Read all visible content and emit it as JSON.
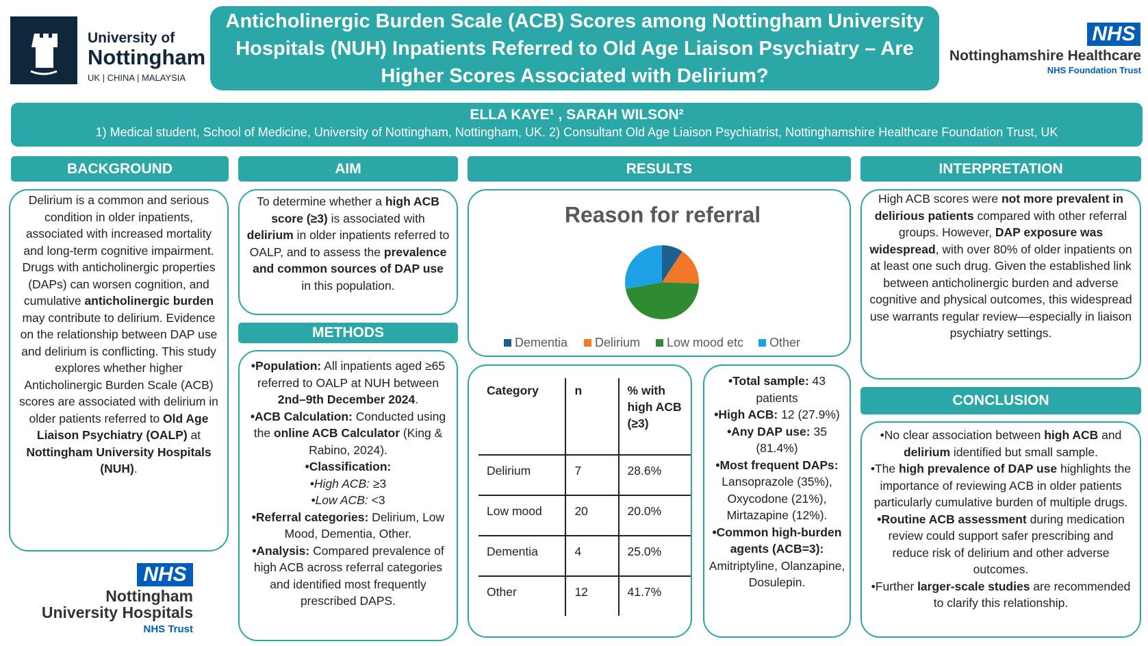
{
  "header": {
    "university": {
      "line1": "University of",
      "line2": "Nottingham",
      "sub": "UK | CHINA | MALAYSIA"
    },
    "title": "Anticholinergic Burden Scale (ACB) Scores among Nottingham University Hospitals (NUH) Inpatients Referred to Old Age Liaison Psychiatry – Are Higher Scores Associated with Delirium?",
    "nhs_right": {
      "badge": "NHS",
      "name": "Nottinghamshire Healthcare",
      "sub": "NHS Foundation Trust"
    }
  },
  "authors": {
    "names": "ELLA KAYE¹ , SARAH WILSON²",
    "affiliations": "1) Medical student,  School of Medicine, University of Nottingham, Nottingham, UK. 2) Consultant Old Age Liaison Psychiatrist, Nottinghamshire Healthcare Foundation Trust, UK"
  },
  "background": {
    "heading": "BACKGROUND",
    "body": [
      "Delirium is a common and serious condition in older inpatients, associated with increased mortality and long-term cognitive impairment. Drugs with anticholinergic properties (DAPs) can worsen cognition, and cumulative ",
      {
        "bold": "anticholinergic burden"
      },
      " may contribute to delirium. Evidence on the relationship between DAP use and delirium is conflicting. This study explores whether higher Anticholinergic Burden Scale (ACB) scores are associated with delirium in older patients referred to ",
      {
        "bold": "Old Age Liaison Psychiatry (OALP)"
      },
      " at ",
      {
        "bold": "Nottingham University Hospitals (NUH)"
      },
      "."
    ]
  },
  "nuh_logo": {
    "badge": "NHS",
    "line1": "Nottingham",
    "line2": "University Hospitals",
    "sub": "NHS Trust"
  },
  "aim": {
    "heading": "AIM",
    "body": [
      "To determine whether a ",
      {
        "bold": "high ACB score (≥3)"
      },
      " is associated with ",
      {
        "bold": "delirium"
      },
      " in older inpatients referred to OALP, and to assess the ",
      {
        "bold": "prevalence and common sources of DAP use"
      },
      " in this population."
    ]
  },
  "methods": {
    "heading": "METHODS",
    "items": [
      [
        {
          "bold": "•Population:"
        },
        " All inpatients aged ≥65 referred to OALP at NUH between ",
        {
          "bold": "2nd–9th December 2024"
        },
        "."
      ],
      [
        {
          "bold": "•ACB Calculation:"
        },
        " Conducted using the ",
        {
          "bold": "online ACB Calculator"
        },
        " (King & Rabino, 2024)."
      ],
      [
        {
          "bold": "•Classification:"
        }
      ],
      [
        {
          "italic": "•High ACB:"
        },
        " ≥3"
      ],
      [
        {
          "italic": "•Low ACB:"
        },
        " <3"
      ],
      [
        {
          "bold": "•Referral categories:"
        },
        " Delirium, Low Mood, Dementia, Other."
      ],
      [
        {
          "bold": "•Analysis:"
        },
        " Compared prevalence of high ACB across referral categories and identified most frequently prescribed DAPS."
      ]
    ]
  },
  "results": {
    "heading": "RESULTS",
    "table": {
      "header": [
        "Category",
        "n",
        "% with high ACB (≥3)"
      ],
      "rows": [
        [
          "Delirium",
          "7",
          "28.6%"
        ],
        [
          "Low mood",
          "20",
          "20.0%"
        ],
        [
          "Dementia",
          "4",
          "25.0%"
        ],
        [
          "Other",
          "12",
          "41.7%"
        ]
      ]
    },
    "summary": [
      [
        {
          "bold": "•Total sample:"
        },
        " 43 patients"
      ],
      [
        {
          "bold": "•High ACB:"
        },
        " 12 (27.9%)"
      ],
      [
        {
          "bold": "•Any DAP use:"
        },
        " 35 (81.4%)"
      ],
      [
        {
          "bold": "•Most frequent DAPs:"
        },
        " Lansoprazole (35%), Oxycodone (21%), Mirtazapine (12%)."
      ],
      [
        {
          "bold": "•Common high-burden agents (ACB=3):"
        },
        " Amitriptyline, Olanzapine, Dosulepin."
      ]
    ]
  },
  "chart_data": {
    "type": "pie",
    "title": "Reason for referral",
    "categories": [
      "Dementia",
      "Delirium",
      "Low mood etc",
      "Other"
    ],
    "values": [
      4,
      7,
      20,
      12
    ],
    "colors": [
      "#1f5f8b",
      "#f07828",
      "#2e8b30",
      "#1da1e6"
    ]
  },
  "interpretation": {
    "heading": "INTERPRETATION",
    "body": [
      "High ACB scores were ",
      {
        "bold": "not more prevalent in delirious patients"
      },
      " compared with other referral groups. However, ",
      {
        "bold": "DAP exposure was widespread"
      },
      ", with over 80% of older inpatients on at least one such drug. Given the established link between anticholinergic burden and adverse cognitive and physical outcomes, this widespread use warrants regular review—especially in liaison psychiatry settings."
    ]
  },
  "conclusion": {
    "heading": "CONCLUSION",
    "items": [
      [
        "•No clear association between ",
        {
          "bold": "high ACB"
        },
        " and ",
        {
          "bold": "delirium"
        },
        " identified but small sample."
      ],
      [
        "•The ",
        {
          "bold": "high prevalence of DAP use"
        },
        " highlights the importance of reviewing ACB in older patients particularly cumulative burden of multiple drugs."
      ],
      [
        {
          "bold": "•Routine ACB assessment"
        },
        " during medication review could support safer prescribing and reduce risk of delirium and other adverse outcomes."
      ],
      [
        "•Further ",
        {
          "bold": "larger-scale studies"
        },
        " are recommended to clarify this relationship."
      ]
    ]
  }
}
